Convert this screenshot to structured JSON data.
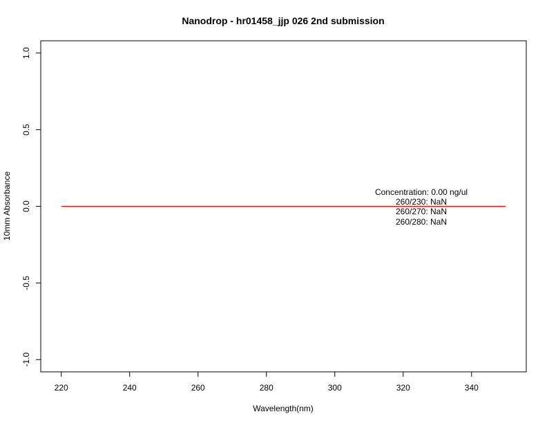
{
  "chart_data": {
    "type": "line",
    "title": "Nanodrop - hr01458_jjp 026 2nd submission",
    "xlabel": "Wavelength(nm)",
    "ylabel": "10mm Absorbance",
    "xlim": [
      214,
      356
    ],
    "ylim": [
      -1.08,
      1.08
    ],
    "xticks": [
      220,
      240,
      260,
      280,
      300,
      320,
      340
    ],
    "yticks": [
      -1.0,
      -0.5,
      0.0,
      0.5,
      1.0
    ],
    "ytick_labels": [
      "-1.0",
      "-0.5",
      "0.0",
      "0.5",
      "1.0"
    ],
    "grid": false,
    "series": [
      {
        "color": "#ff0000",
        "x": [
          220,
          350
        ],
        "y": [
          0.0,
          0.0
        ]
      }
    ],
    "annotations": [
      "Concentration: 0.00 ng/ul",
      "260/230: NaN",
      "260/270: NaN",
      "260/280: NaN"
    ]
  }
}
